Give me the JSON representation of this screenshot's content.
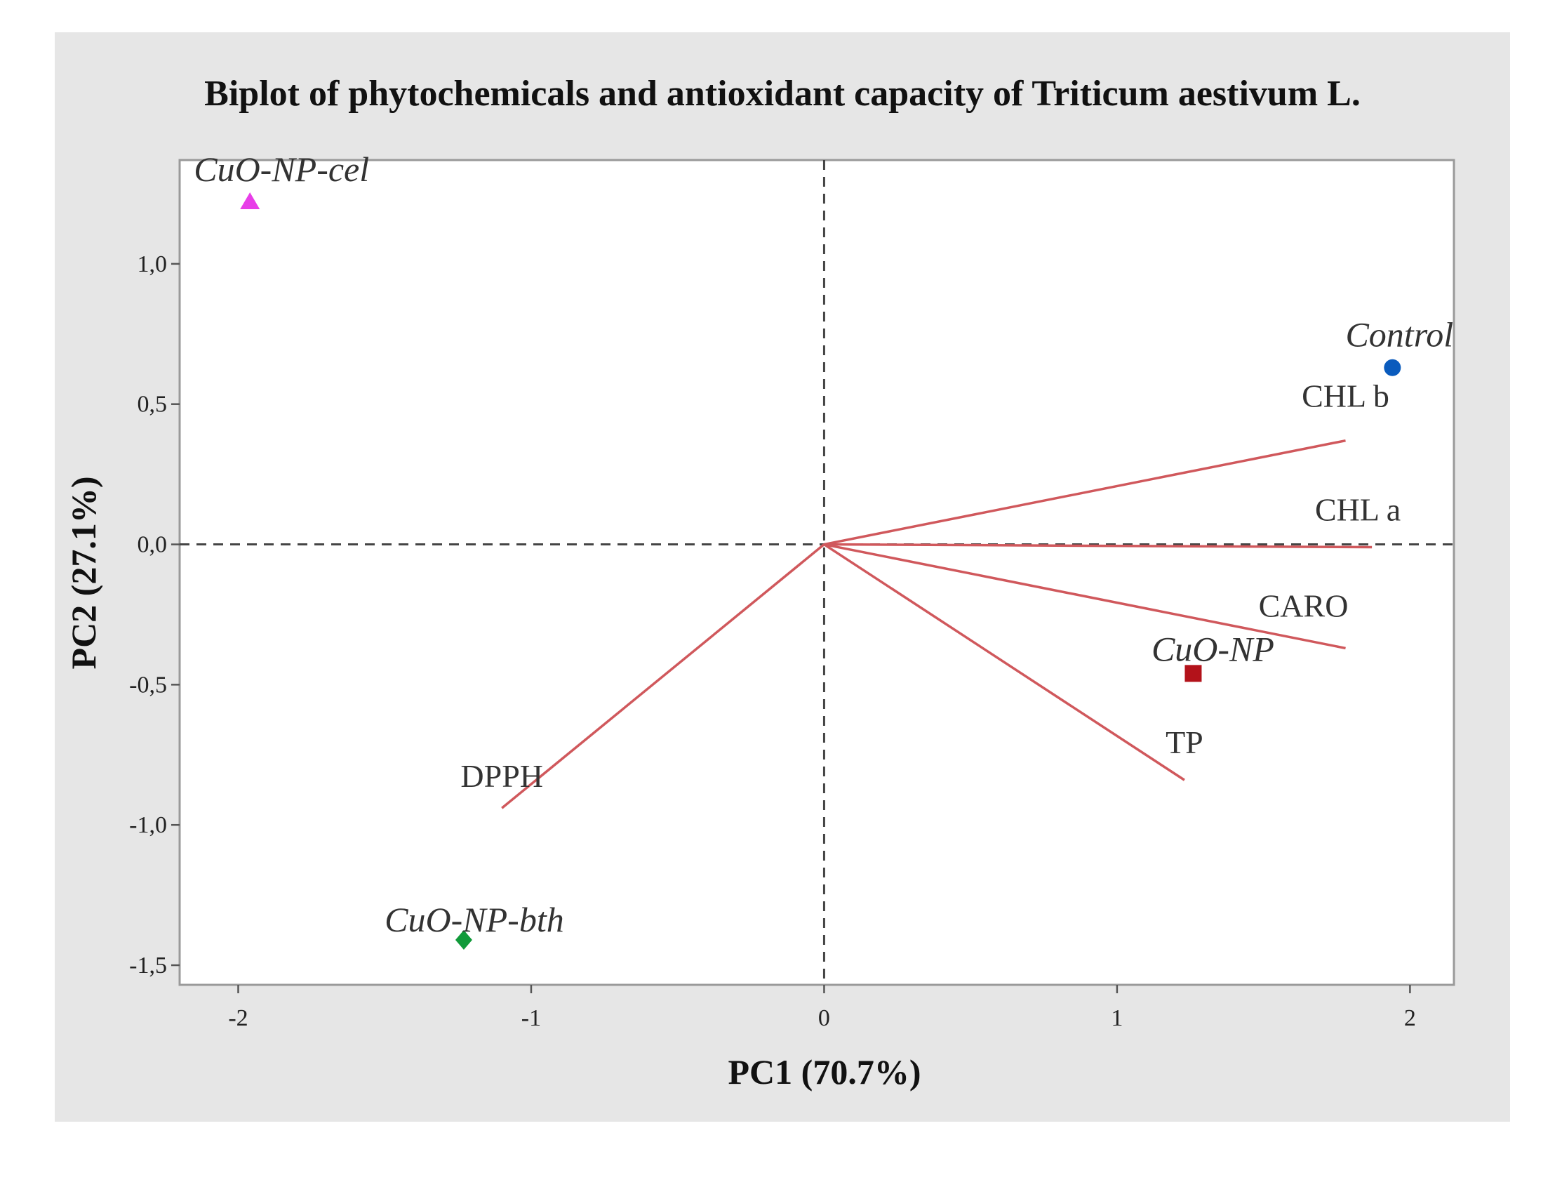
{
  "chart_data": {
    "type": "scatter",
    "title": "Biplot of phytochemicals and antioxidant capacity of Triticum aestivum L.",
    "xlabel": "PC1 (70.7%)",
    "ylabel": "PC2 (27.1%)",
    "xlim": [
      -2.2,
      2.15
    ],
    "ylim": [
      -1.57,
      1.37
    ],
    "xticks": [
      {
        "value": -2,
        "label": "-2"
      },
      {
        "value": -1,
        "label": "-1"
      },
      {
        "value": 0,
        "label": "0"
      },
      {
        "value": 1,
        "label": "1"
      },
      {
        "value": 2,
        "label": "2"
      }
    ],
    "yticks": [
      {
        "value": 1.0,
        "label": "1,0"
      },
      {
        "value": 0.5,
        "label": "0,5"
      },
      {
        "value": 0.0,
        "label": "0,0"
      },
      {
        "value": -0.5,
        "label": "-0,5"
      },
      {
        "value": -1.0,
        "label": "-1,0"
      },
      {
        "value": -1.5,
        "label": "-1,5"
      }
    ],
    "reference_lines": {
      "x": 0,
      "y": 0,
      "style": "dashed"
    },
    "loadings": [
      {
        "name": "CHL b",
        "x": 1.78,
        "y": 0.37
      },
      {
        "name": "CHL a",
        "x": 1.87,
        "y": -0.01
      },
      {
        "name": "CARO",
        "x": 1.78,
        "y": -0.37
      },
      {
        "name": "TP",
        "x": 1.23,
        "y": -0.84
      },
      {
        "name": "DPPH",
        "x": -1.1,
        "y": -0.94
      }
    ],
    "scores": [
      {
        "name": "CuO-NP-cel",
        "x": -1.96,
        "y": 1.22,
        "marker": "triangle",
        "color": "#e83ee8"
      },
      {
        "name": "Control",
        "x": 1.94,
        "y": 0.63,
        "marker": "circle",
        "color": "#0a5bbd"
      },
      {
        "name": "CuO-NP",
        "x": 1.26,
        "y": -0.46,
        "marker": "square",
        "color": "#b3121a"
      },
      {
        "name": "CuO-NP-bth",
        "x": -1.23,
        "y": -1.41,
        "marker": "diamond",
        "color": "#119a3a"
      }
    ],
    "loading_color": "#d0585c"
  }
}
